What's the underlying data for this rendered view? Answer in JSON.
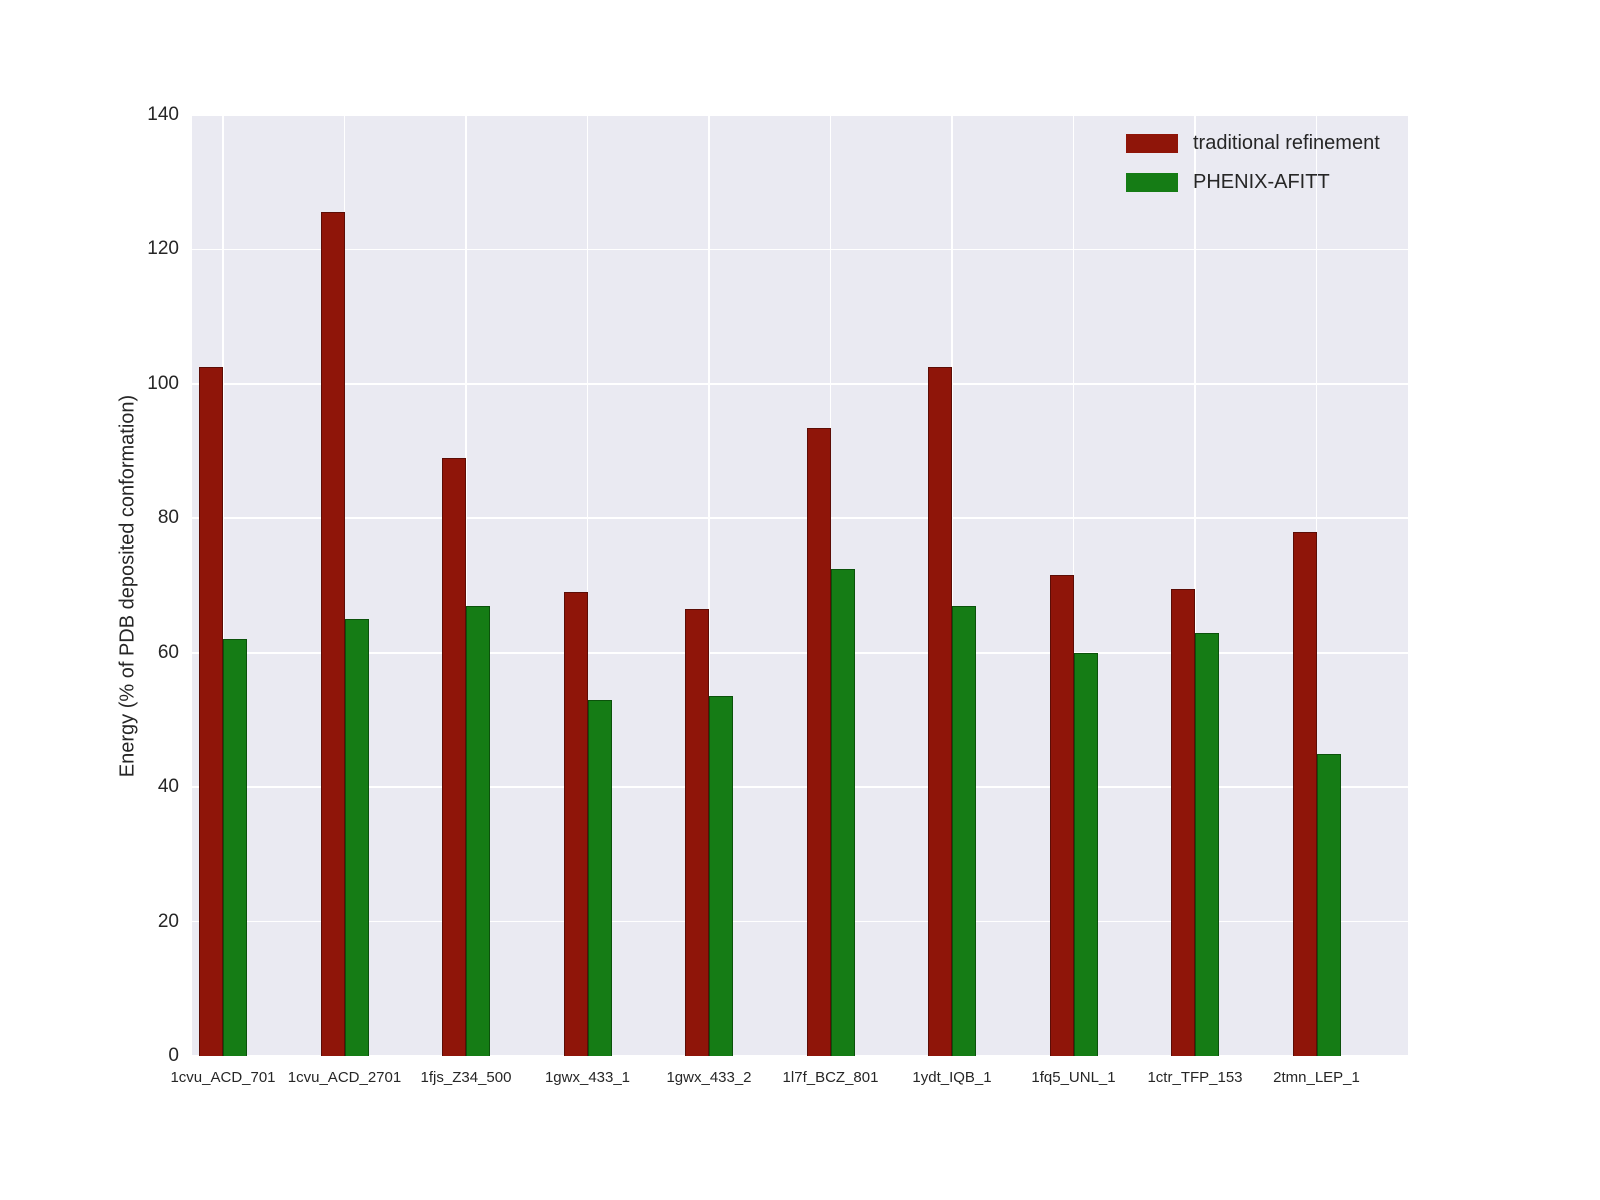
{
  "figure": {
    "background": "#ffffff",
    "plot_background": "#eaeaf2",
    "grid_color": "#ffffff",
    "text_color": "#262626"
  },
  "chart_data": {
    "type": "bar",
    "title": "",
    "xlabel": "",
    "ylabel": "Energy (% of PDB deposited conformation)",
    "ylim": [
      0,
      140
    ],
    "yticks": [
      0,
      20,
      40,
      60,
      80,
      100,
      120,
      140
    ],
    "grid": true,
    "legend_position": "upper right",
    "categories": [
      "1cvu_ACD_701",
      "1cvu_ACD_2701",
      "1fjs_Z34_500",
      "1gwx_433_1",
      "1gwx_433_2",
      "1l7f_BCZ_801",
      "1ydt_IQB_1",
      "1fq5_UNL_1",
      "1ctr_TFP_153",
      "2tmn_LEP_1"
    ],
    "series": [
      {
        "name": "traditional refinement",
        "color": "#8f1509",
        "edge_color": "#5c0d06",
        "values": [
          102.5,
          125.5,
          89,
          69,
          66.5,
          93.5,
          102.5,
          71.5,
          69.5,
          78
        ]
      },
      {
        "name": "PHENIX-AFITT",
        "color": "#157c15",
        "edge_color": "#0b520b",
        "values": [
          62,
          65,
          67,
          53,
          53.5,
          72.5,
          67,
          60,
          63,
          45
        ]
      }
    ]
  }
}
